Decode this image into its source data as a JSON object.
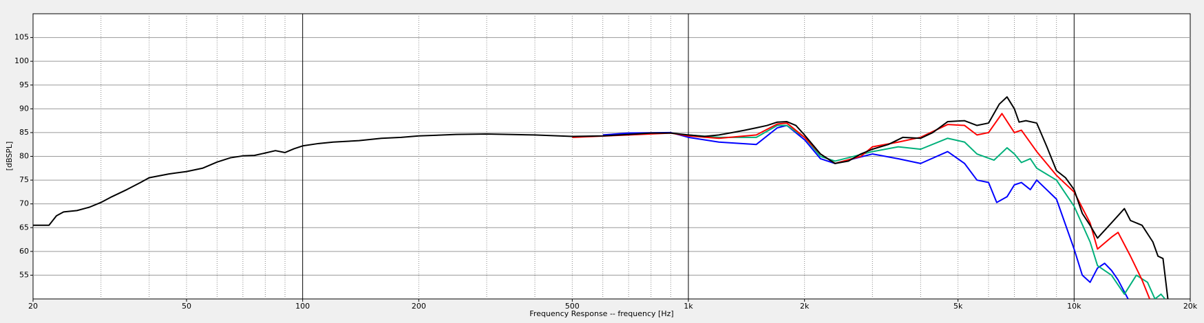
{
  "chart_data": {
    "type": "line",
    "xlabel": "Frequency Response -- frequency [Hz]",
    "ylabel": "[dBSPL]",
    "log_x": true,
    "grid": true,
    "xlim": [
      20,
      20000
    ],
    "ylim": [
      50,
      110
    ],
    "xticks": [
      20,
      50,
      100,
      200,
      500,
      {
        "value": 1000,
        "label": "1k"
      },
      {
        "value": 2000,
        "label": "2k"
      },
      {
        "value": 5000,
        "label": "5k"
      },
      {
        "value": 10000,
        "label": "10k"
      },
      {
        "value": 20000,
        "label": "20k"
      }
    ],
    "minor_xticks": [
      30,
      40,
      60,
      70,
      80,
      90,
      300,
      400,
      600,
      700,
      800,
      900,
      3000,
      4000,
      6000,
      7000,
      8000,
      9000
    ],
    "yticks": [
      55,
      60,
      65,
      70,
      75,
      80,
      85,
      90,
      95,
      100,
      105
    ],
    "series": [
      {
        "color": "#0000ff",
        "x": [
          600,
          700,
          900,
          1000,
          1200,
          1500,
          1700,
          1800,
          2000,
          2200,
          2400,
          3000,
          3500,
          4000,
          4700,
          5200,
          5600,
          6000,
          6300,
          6700,
          7000,
          7300,
          7700,
          8000,
          9000,
          10000,
          10500,
          11000,
          11500,
          12000,
          12500,
          13000,
          13800
        ],
        "values": [
          84.5,
          84.9,
          85,
          84,
          83,
          82.5,
          86,
          86.5,
          83.5,
          79.5,
          78.5,
          80.5,
          79.5,
          78.5,
          81,
          78.5,
          75,
          74.5,
          70.3,
          71.5,
          74,
          74.5,
          73,
          75,
          71,
          60.5,
          55,
          53.5,
          56.5,
          57.5,
          56,
          54,
          50
        ]
      },
      {
        "color": "#00b07a",
        "x": [
          1000,
          1200,
          1500,
          1700,
          1800,
          2000,
          2200,
          2400,
          3000,
          3500,
          4000,
          4700,
          5200,
          5600,
          6200,
          6700,
          7000,
          7300,
          7700,
          8000,
          9000,
          10000,
          11000,
          11500,
          12500,
          13500,
          14500,
          15500,
          16200,
          16800,
          17200
        ],
        "values": [
          84.5,
          84,
          84,
          86.5,
          86.5,
          84,
          80,
          79,
          81,
          82,
          81.5,
          83.8,
          83,
          80.5,
          79.2,
          81.8,
          80.5,
          78.7,
          79.5,
          77.5,
          75,
          69.5,
          62,
          57,
          55,
          51,
          55,
          53.5,
          50,
          51,
          50
        ]
      },
      {
        "color": "#ff0000",
        "x": [
          500,
          700,
          900,
          1000,
          1200,
          1500,
          1700,
          1800,
          2000,
          2200,
          2400,
          2800,
          3000,
          3500,
          4000,
          4700,
          5200,
          5600,
          6000,
          6500,
          7000,
          7300,
          8000,
          9000,
          10000,
          11000,
          11500,
          12500,
          13000,
          14000,
          15000,
          15700
        ],
        "values": [
          84,
          84.5,
          84.9,
          84.3,
          83.8,
          84.5,
          86.8,
          87,
          84,
          80.5,
          78.5,
          80,
          82,
          83,
          84,
          86.7,
          86.5,
          84.5,
          85,
          89,
          85,
          85.5,
          81,
          76,
          72.5,
          66,
          60.5,
          63,
          64,
          59,
          54,
          50
        ]
      },
      {
        "color": "#000000",
        "x": [
          20,
          22,
          23,
          24,
          26,
          28,
          30,
          32,
          35,
          38,
          40,
          45,
          50,
          55,
          60,
          65,
          70,
          75,
          80,
          85,
          90,
          95,
          100,
          110,
          120,
          140,
          160,
          180,
          200,
          250,
          300,
          400,
          500,
          600,
          700,
          800,
          900,
          1000,
          1100,
          1200,
          1300,
          1400,
          1500,
          1600,
          1700,
          1800,
          1900,
          2000,
          2200,
          2400,
          2600,
          2800,
          3000,
          3300,
          3600,
          4000,
          4300,
          4700,
          5200,
          5600,
          6000,
          6400,
          6700,
          7000,
          7200,
          7500,
          8000,
          8500,
          9000,
          9500,
          10000,
          10500,
          11000,
          11500,
          12500,
          13500,
          14000,
          15000,
          16000,
          16500,
          17000,
          17500
        ],
        "values": [
          65.5,
          65.5,
          67.5,
          68.3,
          68.6,
          69.3,
          70.3,
          71.5,
          73,
          74.5,
          75.5,
          76.3,
          76.8,
          77.5,
          78.8,
          79.7,
          80.1,
          80.2,
          80.7,
          81.2,
          80.8,
          81.6,
          82.2,
          82.7,
          83,
          83.3,
          83.8,
          84,
          84.3,
          84.6,
          84.7,
          84.5,
          84.2,
          84.3,
          84.6,
          84.9,
          84.9,
          84.5,
          84.2,
          84.5,
          85,
          85.5,
          86,
          86.5,
          87.2,
          87.3,
          86.5,
          84.5,
          80.5,
          78.5,
          79,
          80.5,
          81.5,
          82.5,
          84,
          83.8,
          85,
          87.3,
          87.5,
          86.5,
          87,
          91,
          92.5,
          90,
          87.2,
          87.5,
          87,
          82,
          77,
          75.5,
          73,
          68,
          65.5,
          62.8,
          66,
          69,
          66.5,
          65.5,
          62,
          59,
          58.5,
          50
        ]
      }
    ]
  }
}
